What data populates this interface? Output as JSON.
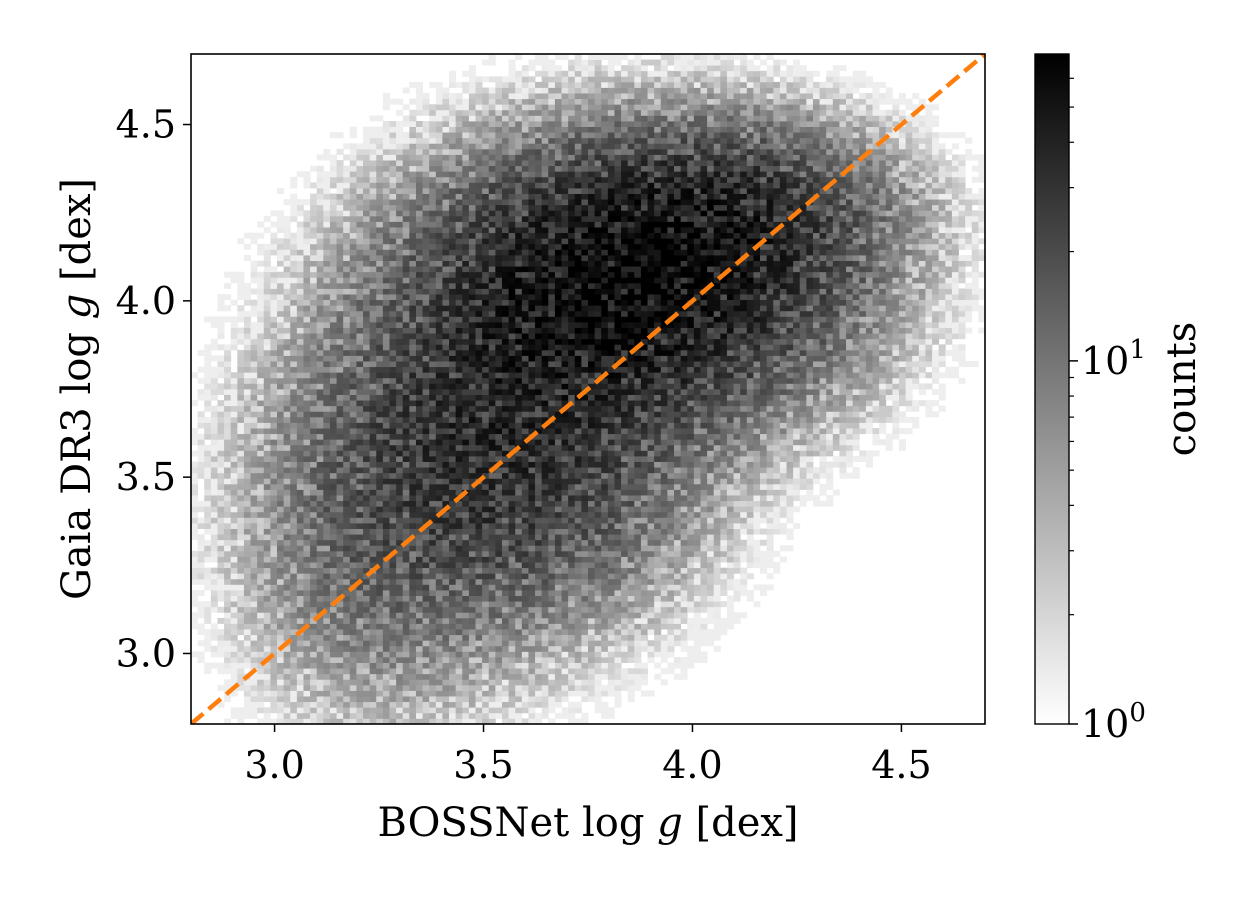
{
  "chart_data": {
    "type": "heatmap",
    "title": "",
    "xlabel": {
      "text": "BOSSNet ",
      "log": "log",
      "var": "g",
      "unit": " [dex]"
    },
    "ylabel": {
      "text": "Gaia DR3 ",
      "log": "log",
      "var": "g",
      "unit": " [dex]"
    },
    "xlim": [
      2.8,
      4.7
    ],
    "ylim": [
      2.8,
      4.7
    ],
    "xticks": [
      3.0,
      3.5,
      4.0,
      4.5
    ],
    "yticks": [
      3.0,
      3.5,
      4.0,
      4.5
    ],
    "xtick_labels": [
      "3.0",
      "3.5",
      "4.0",
      "4.5"
    ],
    "ytick_labels": [
      "3.0",
      "3.5",
      "4.0",
      "4.5"
    ],
    "bins": {
      "x": 120,
      "y": 120
    },
    "color_scale": "log",
    "colormap": "gray_r",
    "count_range": [
      1,
      70
    ],
    "density_components": [
      {
        "center": [
          3.85,
          4.05
        ],
        "sigma": [
          0.28,
          0.22
        ],
        "peak_count": 55
      },
      {
        "center": [
          3.55,
          3.6
        ],
        "sigma": [
          0.25,
          0.28
        ],
        "peak_count": 30
      },
      {
        "center": [
          4.1,
          4.25
        ],
        "sigma": [
          0.22,
          0.15
        ],
        "peak_count": 20
      },
      {
        "center": [
          3.25,
          3.3
        ],
        "sigma": [
          0.2,
          0.3
        ],
        "peak_count": 8
      }
    ],
    "one_to_one_line": {
      "x": [
        2.8,
        4.7
      ],
      "y": [
        2.8,
        4.7
      ],
      "color": "#ff7f0e",
      "style": "dashed"
    },
    "colorbar": {
      "label": "counts",
      "ticks": [
        {
          "base": "10",
          "exp": "0",
          "value": 1
        },
        {
          "base": "10",
          "exp": "1",
          "value": 10
        }
      ],
      "minor_ticks": [
        2,
        3,
        4,
        5,
        6,
        7,
        8,
        9,
        20,
        30,
        40,
        50,
        60
      ]
    }
  }
}
